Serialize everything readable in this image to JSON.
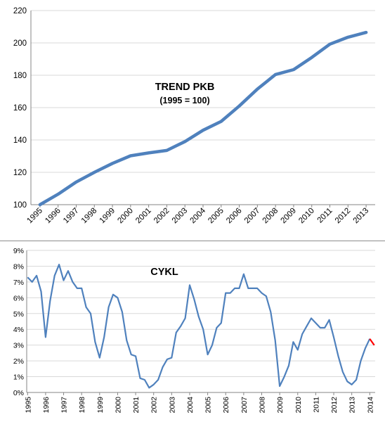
{
  "charts": [
    {
      "type": "line",
      "title": "TREND PKB",
      "subtitle": "(1995 = 100)",
      "xlabel": "",
      "ylabel": "",
      "ylim": [
        100,
        220
      ],
      "yticks": [
        100,
        120,
        140,
        160,
        180,
        200,
        220
      ],
      "ytick_labels": [
        "100",
        "120",
        "140",
        "160",
        "180",
        "200",
        "220"
      ],
      "categories": [
        "1995",
        "1996",
        "1997",
        "1998",
        "1999",
        "2000",
        "2001",
        "2002",
        "2003",
        "2004",
        "2005",
        "2006",
        "2007",
        "2008",
        "2009",
        "2010",
        "2011",
        "2012",
        "2013"
      ],
      "grid": true,
      "legend": "none",
      "line_color": "#4f81bd",
      "series": [
        {
          "values": [
            100,
            106.5,
            114,
            120,
            125.5,
            130.2,
            132,
            133.5,
            139,
            146,
            151.5,
            161,
            171.5,
            180.5,
            183.5,
            191,
            199.2,
            203.5,
            206.5
          ]
        }
      ]
    },
    {
      "type": "line",
      "title": "CYKL",
      "xlabel": "",
      "ylabel": "",
      "ylim": [
        0,
        9
      ],
      "yticks": [
        0,
        1,
        2,
        3,
        4,
        5,
        6,
        7,
        8,
        9
      ],
      "ytick_labels": [
        "0%",
        "1%",
        "2%",
        "3%",
        "4%",
        "5%",
        "6%",
        "7%",
        "8%",
        "9%"
      ],
      "x_start": 1995,
      "x_step": 0.25,
      "year_labels": [
        "1995",
        "1996",
        "1997",
        "1998",
        "1999",
        "2000",
        "2001",
        "2002",
        "2003",
        "2004",
        "2005",
        "2006",
        "2007",
        "2008",
        "2009",
        "2010",
        "2011",
        "2012",
        "2013",
        "2014"
      ],
      "grid": true,
      "legend": "none",
      "line_color": "#4f81bd",
      "highlight_color": "#ff0000",
      "series": [
        {
          "values": [
            7.3,
            7.0,
            7.4,
            6.4,
            3.5,
            5.8,
            7.4,
            8.1,
            7.1,
            7.7,
            7.0,
            6.6,
            6.6,
            5.4,
            5.0,
            3.2,
            2.2,
            3.5,
            5.4,
            6.2,
            6.0,
            5.1,
            3.3,
            2.4,
            2.3,
            0.9,
            0.8,
            0.3,
            0.5,
            0.8,
            1.6,
            2.1,
            2.2,
            3.8,
            4.2,
            4.7,
            6.8,
            5.9,
            4.8,
            4.0,
            2.4,
            3.0,
            4.1,
            4.4,
            6.3,
            6.3,
            6.6,
            6.6,
            7.5,
            6.6,
            6.6,
            6.6,
            6.3,
            6.1,
            5.1,
            3.3,
            0.4,
            1.0,
            1.7,
            3.2,
            2.7,
            3.7,
            4.2,
            4.7,
            4.4,
            4.1,
            4.1,
            4.6,
            3.5,
            2.3,
            1.3,
            0.7,
            0.5,
            0.8,
            2.0,
            2.8,
            3.4,
            3.0
          ]
        }
      ],
      "highlight_from_index": 76
    }
  ]
}
